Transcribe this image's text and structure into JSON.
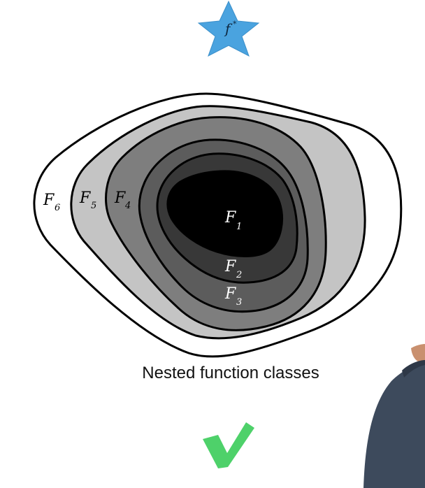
{
  "target": {
    "symbol": "f",
    "superscript": "*",
    "color": "#4aa3df"
  },
  "caption": "Nested function classes",
  "sets": [
    {
      "label": "F",
      "index": "1",
      "fill": "#000000"
    },
    {
      "label": "F",
      "index": "2",
      "fill": "#383838"
    },
    {
      "label": "F",
      "index": "3",
      "fill": "#5c5c5c"
    },
    {
      "label": "F",
      "index": "4",
      "fill": "#7e7e7e"
    },
    {
      "label": "F",
      "index": "5",
      "fill": "#c4c4c4"
    },
    {
      "label": "F",
      "index": "6",
      "fill": "#ffffff"
    }
  ],
  "checkmark": {
    "color": "#4ed16a"
  },
  "presenter": {
    "shirt_color": "#3d4a5c",
    "skin_color": "#c9906f"
  }
}
